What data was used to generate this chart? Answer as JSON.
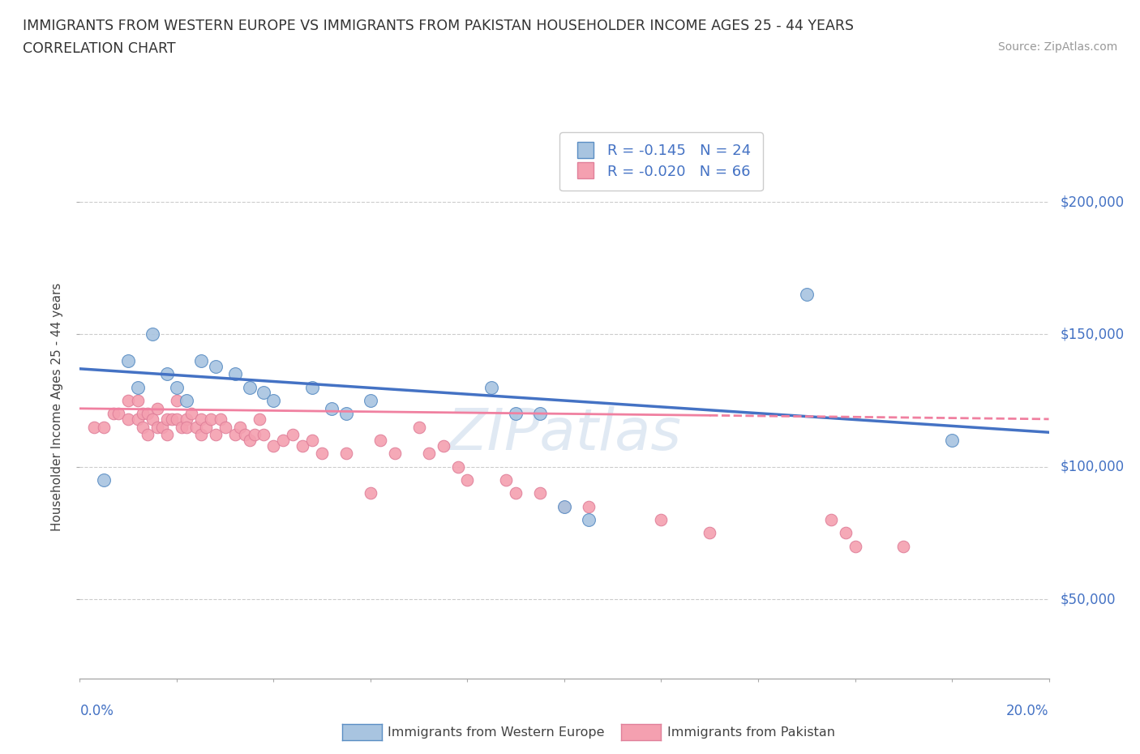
{
  "title_line1": "IMMIGRANTS FROM WESTERN EUROPE VS IMMIGRANTS FROM PAKISTAN HOUSEHOLDER INCOME AGES 25 - 44 YEARS",
  "title_line2": "CORRELATION CHART",
  "source_text": "Source: ZipAtlas.com",
  "ylabel": "Householder Income Ages 25 - 44 years",
  "r_blue": -0.145,
  "n_blue": 24,
  "r_pink": -0.02,
  "n_pink": 66,
  "legend_label_blue": "Immigrants from Western Europe",
  "legend_label_pink": "Immigrants from Pakistan",
  "watermark": "ZIPatlas",
  "blue_scatter_color": "#a8c4e0",
  "pink_scatter_color": "#f4a0b0",
  "blue_edge_color": "#5b8ec4",
  "pink_edge_color": "#e0809a",
  "blue_line_color": "#4472c4",
  "pink_line_color": "#f080a0",
  "ytick_labels": [
    "$50,000",
    "$100,000",
    "$150,000",
    "$200,000"
  ],
  "ytick_values": [
    50000,
    100000,
    150000,
    200000
  ],
  "ymin": 20000,
  "ymax": 225000,
  "xmin": 0.0,
  "xmax": 0.2,
  "blue_scatter_x": [
    0.005,
    0.01,
    0.012,
    0.015,
    0.018,
    0.02,
    0.022,
    0.025,
    0.028,
    0.032,
    0.035,
    0.038,
    0.04,
    0.048,
    0.052,
    0.055,
    0.06,
    0.085,
    0.09,
    0.095,
    0.1,
    0.105,
    0.15,
    0.18
  ],
  "blue_scatter_y": [
    95000,
    140000,
    130000,
    150000,
    135000,
    130000,
    125000,
    140000,
    138000,
    135000,
    130000,
    128000,
    125000,
    130000,
    122000,
    120000,
    125000,
    130000,
    120000,
    120000,
    85000,
    80000,
    165000,
    110000
  ],
  "pink_scatter_x": [
    0.003,
    0.005,
    0.007,
    0.008,
    0.01,
    0.01,
    0.012,
    0.012,
    0.013,
    0.013,
    0.014,
    0.014,
    0.015,
    0.016,
    0.016,
    0.017,
    0.018,
    0.018,
    0.019,
    0.02,
    0.02,
    0.021,
    0.022,
    0.022,
    0.023,
    0.024,
    0.025,
    0.025,
    0.026,
    0.027,
    0.028,
    0.029,
    0.03,
    0.032,
    0.033,
    0.034,
    0.035,
    0.036,
    0.037,
    0.038,
    0.04,
    0.042,
    0.044,
    0.046,
    0.048,
    0.05,
    0.055,
    0.06,
    0.062,
    0.065,
    0.07,
    0.072,
    0.075,
    0.078,
    0.08,
    0.088,
    0.09,
    0.095,
    0.1,
    0.105,
    0.12,
    0.13,
    0.155,
    0.158,
    0.16,
    0.17
  ],
  "pink_scatter_y": [
    115000,
    115000,
    120000,
    120000,
    118000,
    125000,
    118000,
    125000,
    120000,
    115000,
    112000,
    120000,
    118000,
    122000,
    115000,
    115000,
    118000,
    112000,
    118000,
    118000,
    125000,
    115000,
    118000,
    115000,
    120000,
    115000,
    118000,
    112000,
    115000,
    118000,
    112000,
    118000,
    115000,
    112000,
    115000,
    112000,
    110000,
    112000,
    118000,
    112000,
    108000,
    110000,
    112000,
    108000,
    110000,
    105000,
    105000,
    90000,
    110000,
    105000,
    115000,
    105000,
    108000,
    100000,
    95000,
    95000,
    90000,
    90000,
    85000,
    85000,
    80000,
    75000,
    80000,
    75000,
    70000,
    70000
  ]
}
